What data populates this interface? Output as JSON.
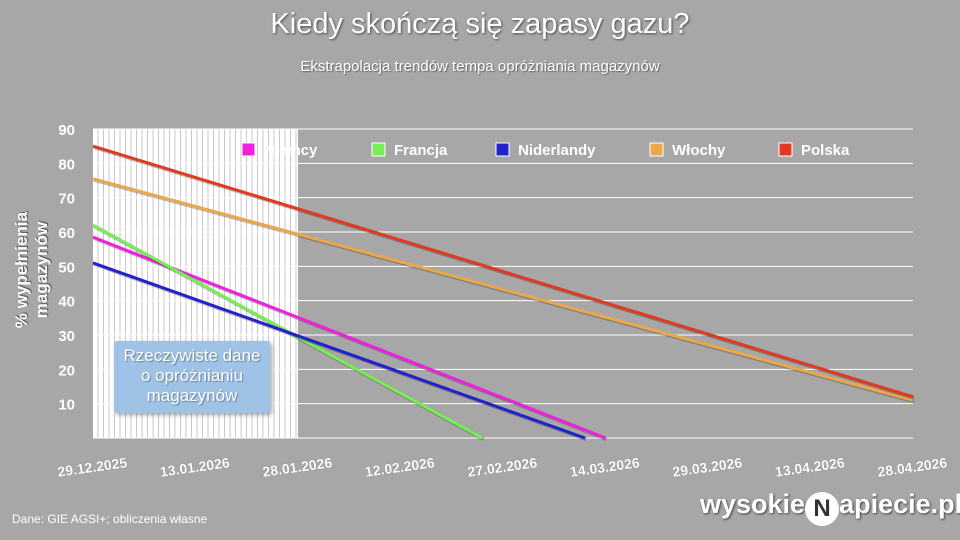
{
  "title": "Kiedy skończą się zapasy gazu?",
  "subtitle": "Ekstrapolacja trendów tempa opróżniania magazynów",
  "source": "Dane: GIE AGSI+; obliczenia własne",
  "brand": {
    "prefix": "wysokie",
    "mark": "N",
    "suffix": "apiecie.pl"
  },
  "annotation": [
    "Rzeczywiste dane",
    "o opróżnianiu",
    "magazynów"
  ],
  "chart_data": {
    "type": "line",
    "title": "Kiedy skończą się zapasy gazu?",
    "subtitle": "Ekstrapolacja trendów tempa opróżniania magazynów",
    "ylabel": "% wypełnienia magazynów",
    "xlabel": "",
    "ylim": [
      0,
      90
    ],
    "yticks": [
      10,
      20,
      30,
      40,
      50,
      60,
      70,
      80,
      90
    ],
    "xlim": [
      "29.12.2025",
      "28.04.2026"
    ],
    "xticks": [
      "29.12.2025",
      "13.01.2026",
      "28.01.2026",
      "12.02.2026",
      "27.02.2026",
      "14.03.2026",
      "29.03.2026",
      "13.04.2026",
      "28.04.2026"
    ],
    "actual_data_range": [
      "29.12.2025",
      "28.01.2026"
    ],
    "legend_placement": "top",
    "grid": true,
    "series": [
      {
        "name": "Niemcy",
        "color": "#ee22dd",
        "points": [
          [
            "29.12.2025",
            58.5
          ],
          [
            "14.03.2026",
            0
          ]
        ]
      },
      {
        "name": "Francja",
        "color": "#77ee55",
        "points": [
          [
            "29.12.2025",
            62
          ],
          [
            "24.02.2026",
            0
          ]
        ]
      },
      {
        "name": "Niderlandy",
        "color": "#2222cc",
        "points": [
          [
            "29.12.2025",
            51
          ],
          [
            "11.03.2026",
            0
          ]
        ]
      },
      {
        "name": "Włochy",
        "color": "#e9a84a",
        "points": [
          [
            "29.12.2025",
            75.5
          ],
          [
            "28.04.2026",
            11
          ]
        ]
      },
      {
        "name": "Polska",
        "color": "#e03a22",
        "points": [
          [
            "29.12.2025",
            85
          ],
          [
            "28.04.2026",
            12
          ]
        ]
      }
    ]
  }
}
